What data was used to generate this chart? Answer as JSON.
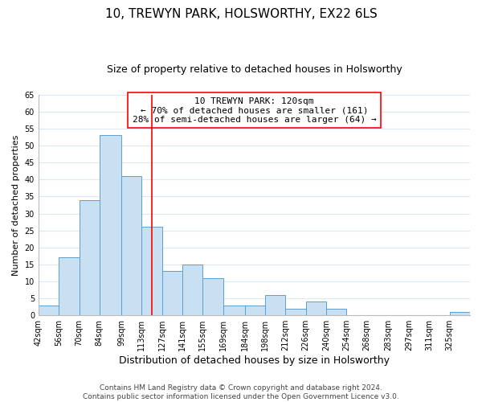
{
  "title": "10, TREWYN PARK, HOLSWORTHY, EX22 6LS",
  "subtitle": "Size of property relative to detached houses in Holsworthy",
  "xlabel": "Distribution of detached houses by size in Holsworthy",
  "ylabel": "Number of detached properties",
  "bar_labels": [
    "42sqm",
    "56sqm",
    "70sqm",
    "84sqm",
    "99sqm",
    "113sqm",
    "127sqm",
    "141sqm",
    "155sqm",
    "169sqm",
    "184sqm",
    "198sqm",
    "212sqm",
    "226sqm",
    "240sqm",
    "254sqm",
    "268sqm",
    "283sqm",
    "297sqm",
    "311sqm",
    "325sqm"
  ],
  "bar_heights": [
    3,
    17,
    34,
    53,
    41,
    26,
    13,
    15,
    11,
    3,
    3,
    6,
    2,
    4,
    2,
    0,
    0,
    0,
    0,
    0,
    1
  ],
  "sqm_values": [
    42,
    56,
    70,
    84,
    99,
    113,
    127,
    141,
    155,
    169,
    184,
    198,
    212,
    226,
    240,
    254,
    268,
    283,
    297,
    311,
    325
  ],
  "bar_color": "#c9dff2",
  "bar_edge_color": "#5a9fd4",
  "annotation_title": "10 TREWYN PARK: 120sqm",
  "annotation_line1": "← 70% of detached houses are smaller (161)",
  "annotation_line2": "28% of semi-detached houses are larger (64) →",
  "property_line_x": 120,
  "ylim": [
    0,
    65
  ],
  "yticks": [
    0,
    5,
    10,
    15,
    20,
    25,
    30,
    35,
    40,
    45,
    50,
    55,
    60,
    65
  ],
  "footer_line1": "Contains HM Land Registry data © Crown copyright and database right 2024.",
  "footer_line2": "Contains public sector information licensed under the Open Government Licence v3.0.",
  "bg_color": "#ffffff",
  "grid_color": "#dce8f0",
  "title_fontsize": 11,
  "subtitle_fontsize": 9,
  "annotation_fontsize": 8,
  "ylabel_fontsize": 8,
  "xlabel_fontsize": 9,
  "footer_fontsize": 6.5,
  "tick_fontsize": 7
}
